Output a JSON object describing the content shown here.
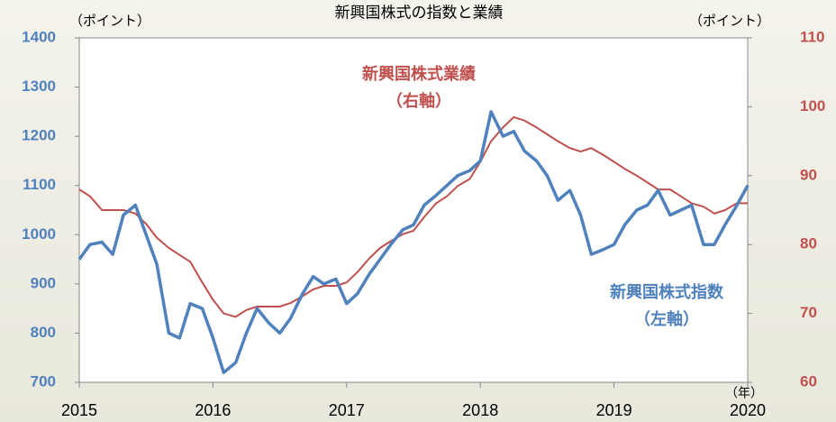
{
  "chart_data": {
    "type": "line",
    "title": "新興国株式の指数と業績",
    "y_label": "（ポイント）",
    "y2_label": "（ポイント）",
    "x_label": "（年）",
    "annotations": [
      "新興国株式業績",
      "（右軸）",
      "新興国株式指数",
      "（左軸）"
    ],
    "x": [
      2015,
      2015.08,
      2015.17,
      2015.25,
      2015.33,
      2015.42,
      2015.5,
      2015.58,
      2015.67,
      2015.75,
      2015.83,
      2015.92,
      2016,
      2016.08,
      2016.17,
      2016.25,
      2016.33,
      2016.42,
      2016.5,
      2016.58,
      2016.67,
      2016.75,
      2016.83,
      2016.92,
      2017,
      2017.08,
      2017.17,
      2017.25,
      2017.33,
      2017.42,
      2017.5,
      2017.58,
      2017.67,
      2017.75,
      2017.83,
      2017.92,
      2018,
      2018.08,
      2018.17,
      2018.25,
      2018.33,
      2018.42,
      2018.5,
      2018.58,
      2018.67,
      2018.75,
      2018.83,
      2018.92,
      2019,
      2019.08,
      2019.17,
      2019.25,
      2019.33,
      2019.42,
      2019.5,
      2019.58,
      2019.67,
      2019.75,
      2019.83,
      2019.92,
      2020
    ],
    "series": [
      {
        "name": "新興国株式指数",
        "color": "#4f81bd",
        "axis": "y",
        "values": [
          950,
          980,
          985,
          960,
          1040,
          1060,
          1000,
          940,
          800,
          790,
          860,
          850,
          790,
          720,
          740,
          800,
          850,
          820,
          800,
          830,
          880,
          915,
          900,
          910,
          860,
          880,
          920,
          950,
          980,
          1010,
          1020,
          1060,
          1080,
          1100,
          1120,
          1130,
          1150,
          1250,
          1200,
          1210,
          1170,
          1150,
          1120,
          1070,
          1090,
          1040,
          960,
          970,
          980,
          1020,
          1050,
          1060,
          1090,
          1040,
          1050,
          1060,
          980,
          980,
          1020,
          1060,
          1100
        ]
      },
      {
        "name": "新興国株式業績",
        "color": "#c0504d",
        "axis": "y2",
        "values": [
          88,
          87,
          85,
          85,
          85,
          84.5,
          83,
          81,
          79.5,
          78.5,
          77.5,
          74.5,
          72,
          70,
          69.5,
          70.5,
          71,
          71,
          71,
          71.5,
          72.5,
          73.5,
          74,
          74,
          74.5,
          76,
          78,
          79.5,
          80.5,
          81.5,
          82,
          84,
          86,
          87,
          88.5,
          89.5,
          92,
          95,
          97,
          98.5,
          98,
          97,
          96,
          95,
          94,
          93.5,
          94,
          93,
          92,
          91,
          90,
          89,
          88,
          88,
          87,
          86,
          85.5,
          84.5,
          85,
          86,
          86
        ]
      }
    ],
    "xlim": [
      2015,
      2020
    ],
    "xticks": [
      2015,
      2016,
      2017,
      2018,
      2019,
      2020
    ],
    "ylim": [
      700,
      1400
    ],
    "yticks": [
      700,
      800,
      900,
      1000,
      1100,
      1200,
      1300,
      1400
    ],
    "y2lim": [
      60,
      110
    ],
    "y2ticks": [
      60,
      70,
      80,
      90,
      100,
      110
    ]
  }
}
